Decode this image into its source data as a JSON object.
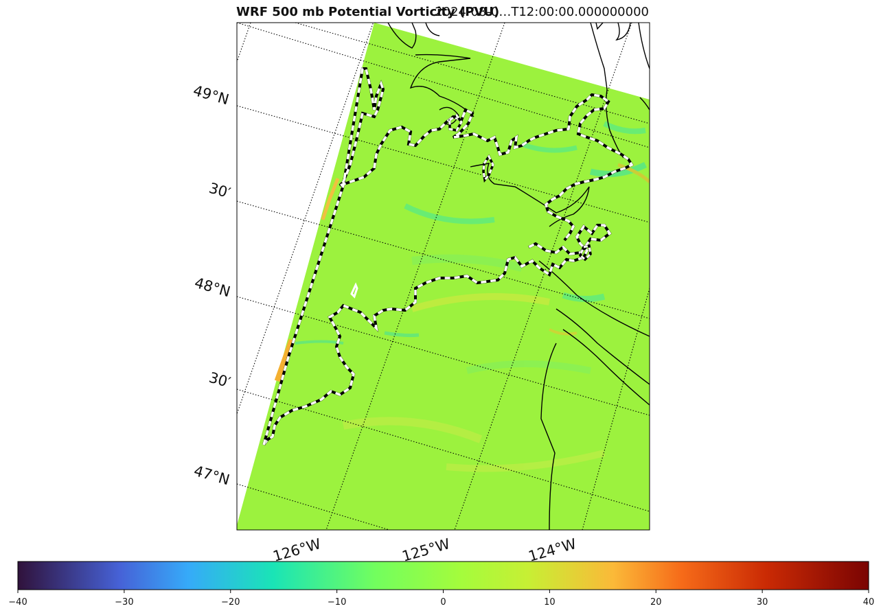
{
  "figure": {
    "title": "WRF 500 mb Potential Vorticity (PVU)",
    "time_label": "2024-08-0…T12:00:00.000000000"
  },
  "map": {
    "lat_labels": [
      "49°N",
      "30′",
      "48°N",
      "30′",
      "47°N"
    ],
    "lon_labels": [
      "126°W",
      "125°W",
      "124°W"
    ],
    "field_colors": {
      "background": "#9af040",
      "light_green": "#a8f43c",
      "greenish": "#80f060",
      "cyan_streak": "#40e8a0",
      "yellow_streak": "#d8e840",
      "orange_edge": "#f4b030"
    },
    "coastline_color": "#000000",
    "contour_style": "white-dashed-on-black"
  },
  "colorbar": {
    "min": -40,
    "max": 40,
    "ticks": [
      "−40",
      "−30",
      "−20",
      "−10",
      "0",
      "10",
      "20",
      "30",
      "40"
    ],
    "colormap": "turbo"
  }
}
